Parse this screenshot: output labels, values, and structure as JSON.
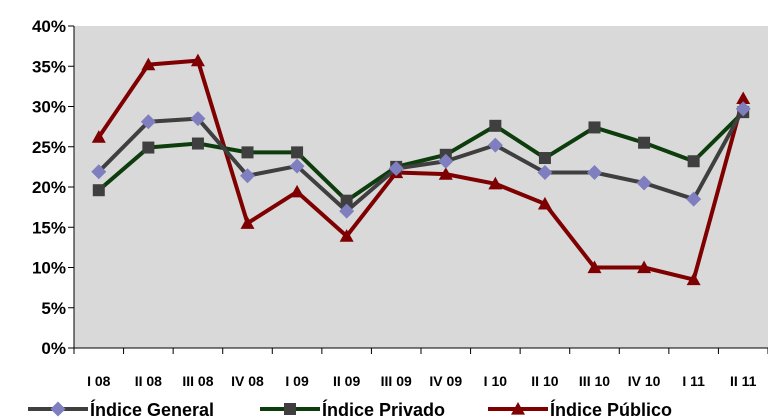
{
  "chart_data": {
    "type": "line",
    "title": "",
    "xlabel": "",
    "ylabel": "",
    "ylim": [
      0,
      40
    ],
    "yticks": [
      "0%",
      "5%",
      "10%",
      "15%",
      "20%",
      "25%",
      "30%",
      "35%",
      "40%"
    ],
    "ytick_values": [
      0,
      5,
      10,
      15,
      20,
      25,
      30,
      35,
      40
    ],
    "categories": [
      "I 08",
      "II 08",
      "III 08",
      "IV 08",
      "I 09",
      "II 09",
      "III 09",
      "IV 09",
      "I 10",
      "II 10",
      "III 10",
      "IV 10",
      "I 11",
      "II 11"
    ],
    "grid": false,
    "legend_position": "bottom",
    "plot_background": "#d9d9d9",
    "series": [
      {
        "name": "Índice General",
        "color": "#3f3f3f",
        "marker": "diamond",
        "marker_color": "#7f7fbf",
        "values": [
          21.9,
          28.1,
          28.5,
          21.4,
          22.6,
          17.0,
          22.3,
          23.2,
          25.2,
          21.8,
          21.8,
          20.5,
          18.5,
          29.7
        ]
      },
      {
        "name": "Índice Privado",
        "color": "#0d3d0d",
        "marker": "square",
        "marker_color": "#3f3f3f",
        "values": [
          19.6,
          24.9,
          25.4,
          24.3,
          24.3,
          18.3,
          22.5,
          24.0,
          27.6,
          23.6,
          27.4,
          25.5,
          23.2,
          29.3
        ]
      },
      {
        "name": "Índice Público",
        "color": "#7f0000",
        "marker": "triangle",
        "marker_color": "#7f0000",
        "values": [
          26.2,
          35.2,
          35.7,
          15.5,
          19.4,
          13.9,
          21.8,
          21.6,
          20.4,
          17.9,
          10.0,
          10.0,
          8.5,
          31.0
        ]
      }
    ]
  }
}
